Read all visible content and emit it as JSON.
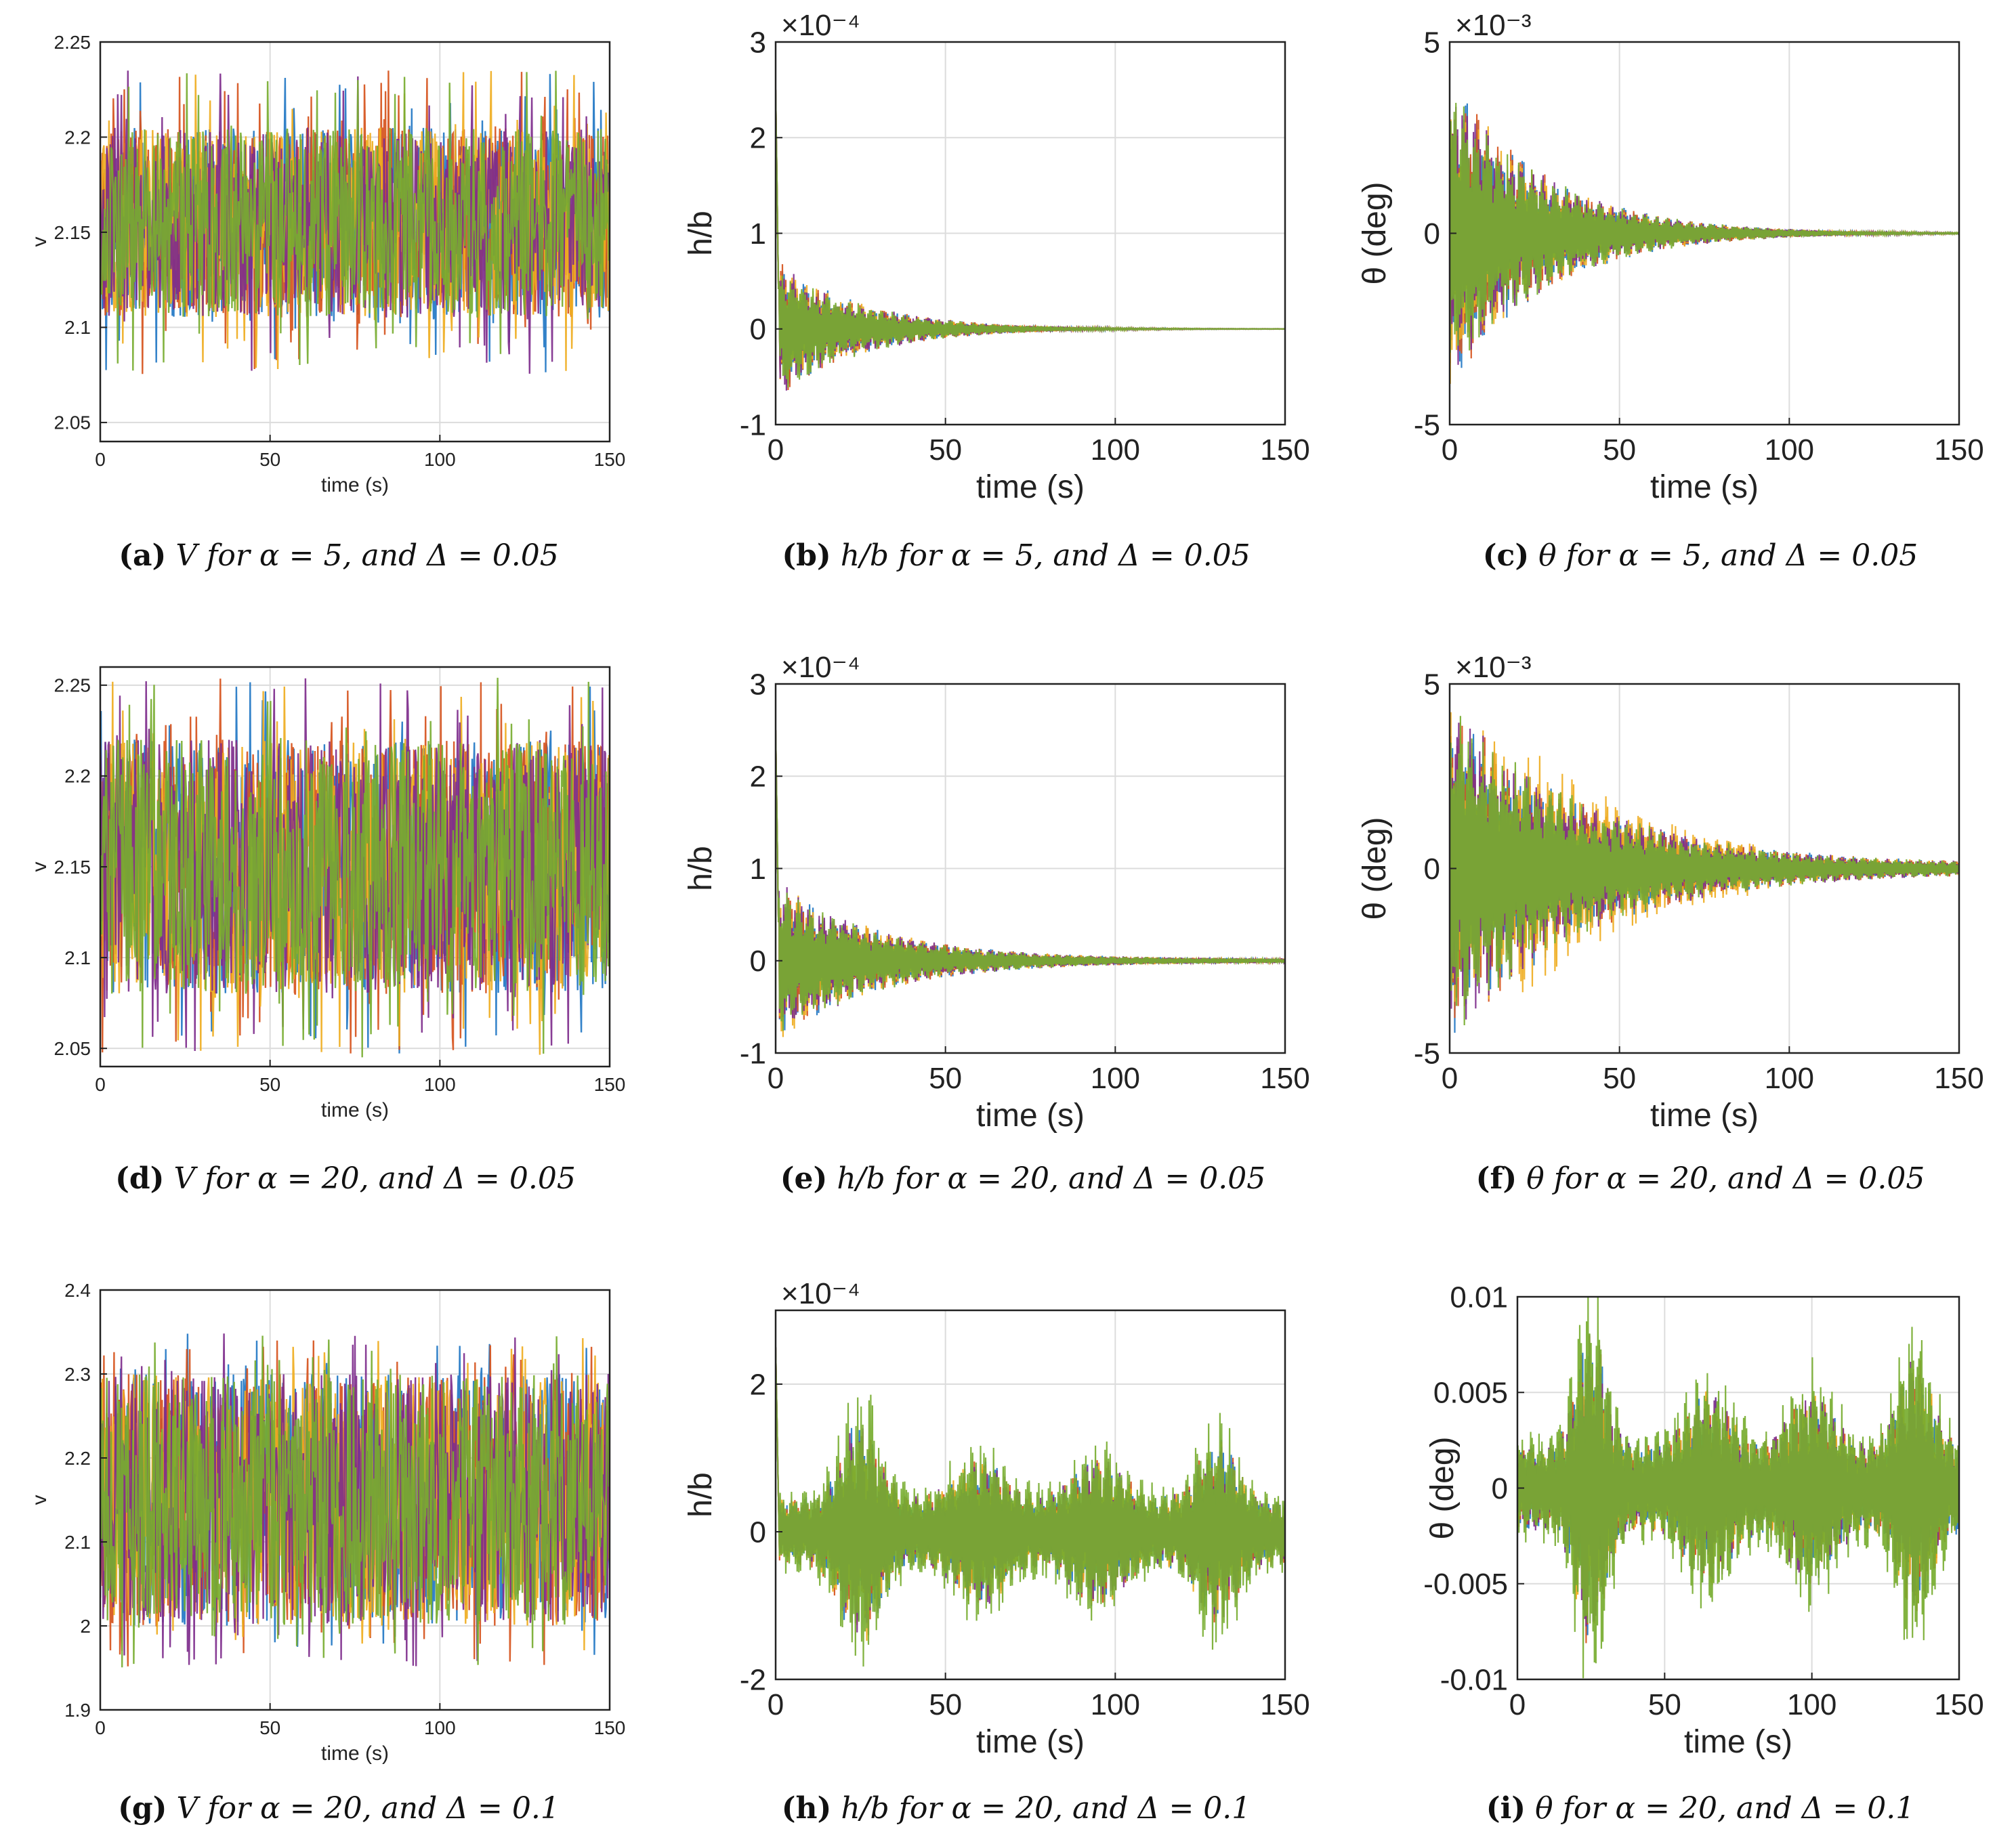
{
  "colors": {
    "blue": "#2277c4",
    "red": "#d6531c",
    "orange": "#efac1f",
    "purple": "#7e2d8c",
    "green": "#77ac30",
    "grid": "#dcdcdc",
    "axis": "#222222"
  },
  "chart_data": [
    {
      "id": "a",
      "type": "line",
      "caption_label": "(a)",
      "caption_text": "V for α = 5, and Δ = 0.05",
      "xlabel": "time (s)",
      "ylabel": "v",
      "exponent": "",
      "xlim": [
        0,
        150
      ],
      "ylim": [
        2.04,
        2.25
      ],
      "xticks": [
        0,
        50,
        100,
        150
      ],
      "xtick_labels": [
        "0",
        "50",
        "100",
        "150"
      ],
      "yticks": [
        2.05,
        2.1,
        2.15,
        2.2,
        2.25
      ],
      "ytick_labels": [
        "2.05",
        "2.1",
        "2.15",
        "2.2",
        "2.25"
      ],
      "series_names": [
        "blue",
        "red",
        "orange",
        "purple",
        "green"
      ],
      "signal": {
        "kind": "noise",
        "center": 2.155,
        "amp": 0.08,
        "typical": 0.05
      }
    },
    {
      "id": "b",
      "type": "line",
      "caption_label": "(b)",
      "caption_text": "h/b for α = 5, and Δ = 0.05",
      "xlabel": "time (s)",
      "ylabel": "h/b",
      "exponent": "×10⁻⁴",
      "xlim": [
        0,
        150
      ],
      "ylim": [
        -1,
        3
      ],
      "xticks": [
        0,
        50,
        100,
        150
      ],
      "xtick_labels": [
        "0",
        "50",
        "100",
        "150"
      ],
      "yticks": [
        -1,
        0,
        1,
        2,
        3
      ],
      "ytick_labels": [
        "-1",
        "0",
        "1",
        "2",
        "3"
      ],
      "series_names": [
        "blue",
        "red",
        "orange",
        "purple",
        "green"
      ],
      "signal": {
        "kind": "decay",
        "initial": 0.75,
        "spike": 2.5,
        "tau": 25,
        "floor": 0.0
      }
    },
    {
      "id": "c",
      "type": "line",
      "caption_label": "(c)",
      "caption_text": "θ for α = 5, and Δ = 0.05",
      "xlabel": "time (s)",
      "ylabel": "θ (deg)",
      "exponent": "×10⁻³",
      "xlim": [
        0,
        150
      ],
      "ylim": [
        -5,
        5
      ],
      "xticks": [
        0,
        50,
        100,
        150
      ],
      "xtick_labels": [
        "0",
        "50",
        "100",
        "150"
      ],
      "yticks": [
        -5,
        0,
        5
      ],
      "ytick_labels": [
        "-5",
        "0",
        "5"
      ],
      "series_names": [
        "blue",
        "red",
        "orange",
        "purple",
        "green"
      ],
      "signal": {
        "kind": "decay",
        "initial": 4.2,
        "spike": 0,
        "tau": 28,
        "floor": 0.0
      }
    },
    {
      "id": "d",
      "type": "line",
      "caption_label": "(d)",
      "caption_text": "V for α = 20, and Δ = 0.05",
      "xlabel": "time (s)",
      "ylabel": "v",
      "exponent": "",
      "xlim": [
        0,
        150
      ],
      "ylim": [
        2.04,
        2.26
      ],
      "xticks": [
        0,
        50,
        100,
        150
      ],
      "xtick_labels": [
        "0",
        "50",
        "100",
        "150"
      ],
      "yticks": [
        2.05,
        2.1,
        2.15,
        2.2,
        2.25
      ],
      "ytick_labels": [
        "2.05",
        "2.1",
        "2.15",
        "2.2",
        "2.25"
      ],
      "series_names": [
        "blue",
        "red",
        "orange",
        "purple",
        "green"
      ],
      "signal": {
        "kind": "noise",
        "center": 2.15,
        "amp": 0.105,
        "typical": 0.07
      }
    },
    {
      "id": "e",
      "type": "line",
      "caption_label": "(e)",
      "caption_text": "h/b for α = 20, and Δ = 0.05",
      "xlabel": "time (s)",
      "ylabel": "h/b",
      "exponent": "×10⁻⁴",
      "xlim": [
        0,
        150
      ],
      "ylim": [
        -1,
        3
      ],
      "xticks": [
        0,
        50,
        100,
        150
      ],
      "xtick_labels": [
        "0",
        "50",
        "100",
        "150"
      ],
      "yticks": [
        -1,
        0,
        1,
        2,
        3
      ],
      "ytick_labels": [
        "-1",
        "0",
        "1",
        "2",
        "3"
      ],
      "series_names": [
        "blue",
        "red",
        "orange",
        "purple",
        "green"
      ],
      "signal": {
        "kind": "decay",
        "initial": 0.9,
        "spike": 2.5,
        "tau": 30,
        "floor": 0.02
      }
    },
    {
      "id": "f",
      "type": "line",
      "caption_label": "(f)",
      "caption_text": "θ for α = 20, and Δ = 0.05",
      "xlabel": "time (s)",
      "ylabel": "θ (deg)",
      "exponent": "×10⁻³",
      "xlim": [
        0,
        150
      ],
      "ylim": [
        -5,
        5
      ],
      "xticks": [
        0,
        50,
        100,
        150
      ],
      "xtick_labels": [
        "0",
        "50",
        "100",
        "150"
      ],
      "yticks": [
        -5,
        0,
        5
      ],
      "ytick_labels": [
        "-5",
        "0",
        "5"
      ],
      "series_names": [
        "blue",
        "red",
        "orange",
        "purple",
        "green"
      ],
      "signal": {
        "kind": "decay",
        "initial": 4.8,
        "spike": 0,
        "tau": 40,
        "floor": 0.1
      }
    },
    {
      "id": "g",
      "type": "line",
      "caption_label": "(g)",
      "caption_text": "V for α = 20, and Δ = 0.1",
      "xlabel": "time (s)",
      "ylabel": "v",
      "exponent": "",
      "xlim": [
        0,
        150
      ],
      "ylim": [
        1.9,
        2.4
      ],
      "xticks": [
        0,
        50,
        100,
        150
      ],
      "xtick_labels": [
        "0",
        "50",
        "100",
        "150"
      ],
      "yticks": [
        1.9,
        2.0,
        2.1,
        2.2,
        2.3,
        2.4
      ],
      "ytick_labels": [
        "1.9",
        "2",
        "2.1",
        "2.2",
        "2.3",
        "2.4"
      ],
      "series_names": [
        "blue",
        "red",
        "orange",
        "purple",
        "green"
      ],
      "signal": {
        "kind": "noise",
        "center": 2.15,
        "amp": 0.2,
        "typical": 0.15
      }
    },
    {
      "id": "h",
      "type": "line",
      "caption_label": "(h)",
      "caption_text": "h/b for α = 20, and Δ = 0.1",
      "xlabel": "time (s)",
      "ylabel": "h/b",
      "exponent": "×10⁻⁴",
      "xlim": [
        0,
        150
      ],
      "ylim": [
        -2,
        3
      ],
      "xticks": [
        0,
        50,
        100,
        150
      ],
      "xtick_labels": [
        "0",
        "50",
        "100",
        "150"
      ],
      "yticks": [
        -2,
        0,
        2
      ],
      "ytick_labels": [
        "-2",
        "0",
        "2"
      ],
      "series_names": [
        "blue",
        "red",
        "orange",
        "purple",
        "green"
      ],
      "signal": {
        "kind": "beat",
        "base": 0.6,
        "spike": 2.5,
        "bursts": [
          [
            25,
            1.5,
            8
          ],
          [
            130,
            1.1,
            8
          ],
          [
            95,
            0.8,
            10
          ],
          [
            60,
            0.8,
            10
          ]
        ]
      }
    },
    {
      "id": "i",
      "type": "line",
      "caption_label": "(i)",
      "caption_text": "θ for α = 20, and Δ = 0.1",
      "xlabel": "time (s)",
      "ylabel": "θ (deg)",
      "exponent": "",
      "xlim": [
        0,
        150
      ],
      "ylim": [
        -0.01,
        0.01
      ],
      "xticks": [
        0,
        50,
        100,
        150
      ],
      "xtick_labels": [
        "0",
        "50",
        "100",
        "150"
      ],
      "yticks": [
        -0.01,
        -0.005,
        0,
        0.005,
        0.01
      ],
      "ytick_labels": [
        "-0.01",
        "-0.005",
        "0",
        "0.005",
        "0.01"
      ],
      "series_names": [
        "blue",
        "red",
        "orange",
        "purple",
        "green"
      ],
      "signal": {
        "kind": "beat",
        "base": 0.003,
        "spike": 0,
        "bursts": [
          [
            25,
            0.0085,
            7
          ],
          [
            135,
            0.0065,
            8
          ],
          [
            65,
            0.004,
            10
          ],
          [
            100,
            0.004,
            10
          ]
        ]
      }
    }
  ]
}
